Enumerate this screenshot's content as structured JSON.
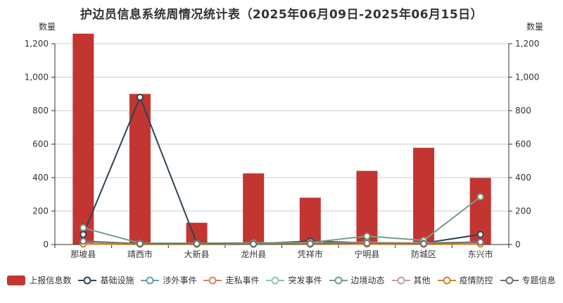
{
  "title": "护边员信息系统周情况统计表（2025年06月09日-2025年06月15日）",
  "chart_data": {
    "type": "bar",
    "categories": [
      "那坡县",
      "靖西市",
      "大新县",
      "龙州县",
      "凭祥市",
      "宁明县",
      "防城区",
      "东兴市"
    ],
    "series": [
      {
        "name": "上报信息数",
        "type": "bar",
        "color": "#c23531",
        "values": [
          1260,
          900,
          130,
          425,
          280,
          440,
          578,
          398
        ]
      },
      {
        "name": "基础设施",
        "type": "line",
        "color": "#2f4554",
        "values": [
          60,
          880,
          10,
          5,
          20,
          10,
          8,
          60
        ]
      },
      {
        "name": "涉外事件",
        "type": "line",
        "color": "#61a0a8",
        "values": [
          5,
          2,
          2,
          2,
          3,
          3,
          2,
          5
        ]
      },
      {
        "name": "走私事件",
        "type": "line",
        "color": "#d48265",
        "values": [
          8,
          2,
          2,
          2,
          3,
          5,
          3,
          5
        ]
      },
      {
        "name": "突发事件",
        "type": "line",
        "color": "#91c7ae",
        "values": [
          2,
          1,
          1,
          1,
          2,
          2,
          2,
          3
        ]
      },
      {
        "name": "边境动态",
        "type": "line",
        "color": "#749f83",
        "values": [
          100,
          8,
          8,
          10,
          12,
          50,
          25,
          285
        ]
      },
      {
        "name": "其他",
        "type": "line",
        "color": "#bda29a",
        "values": [
          20,
          3,
          3,
          3,
          8,
          12,
          10,
          15
        ]
      },
      {
        "name": "疫情防控",
        "type": "line",
        "color": "#ca8622",
        "values": [
          3,
          1,
          1,
          1,
          1,
          2,
          1,
          2
        ]
      },
      {
        "name": "专题信息",
        "type": "line",
        "color": "#6e7074",
        "values": [
          20,
          5,
          5,
          3,
          5,
          8,
          5,
          15
        ]
      }
    ],
    "title": "护边员信息系统周情况统计表（2025年06月09日-2025年06月15日）",
    "xlabel": "",
    "ylabel_left": "数量",
    "ylabel_right": "数量",
    "ylim": [
      0,
      1200
    ],
    "ytick_step": 200,
    "ytick_labels": [
      "0",
      "200",
      "400",
      "600",
      "800",
      "1,000",
      "1,200"
    ],
    "grid": true,
    "legend_position": "bottom"
  },
  "colors": {
    "axis_line": "#333333",
    "grid_line": "#cccccc",
    "text": "#333333",
    "background": "#ffffff"
  }
}
